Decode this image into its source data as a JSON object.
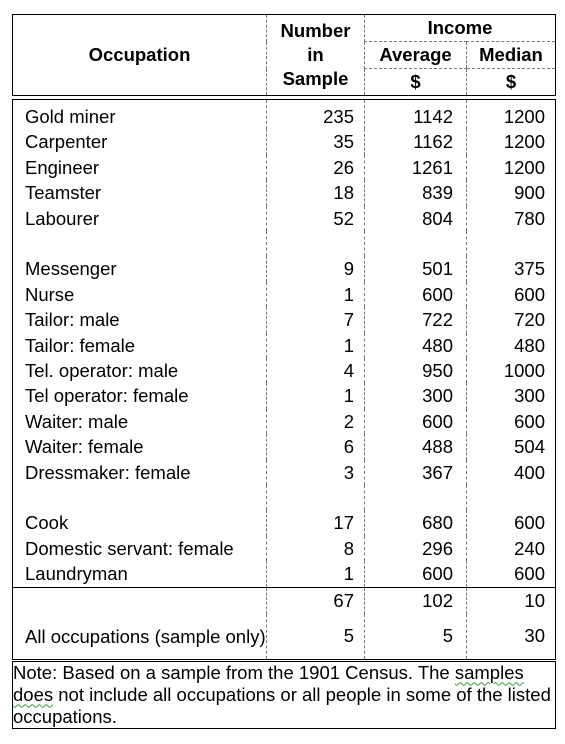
{
  "header": {
    "occupation": "Occupation",
    "number_line1": "Number",
    "number_line2": "in",
    "number_line3": "Sample",
    "income": "Income",
    "average": "Average",
    "median": "Median",
    "average_unit": "$",
    "median_unit": "$"
  },
  "groups": [
    [
      {
        "occupation": "Gold miner",
        "number": "235",
        "average": "1142",
        "median": "1200"
      },
      {
        "occupation": "Carpenter",
        "number": "35",
        "average": "1162",
        "median": "1200"
      },
      {
        "occupation": "Engineer",
        "number": "26",
        "average": "1261",
        "median": "1200"
      },
      {
        "occupation": "Teamster",
        "number": "18",
        "average": "839",
        "median": "900"
      },
      {
        "occupation": "Labourer",
        "number": "52",
        "average": "804",
        "median": "780"
      }
    ],
    [
      {
        "occupation": "Messenger",
        "number": "9",
        "average": "501",
        "median": "375"
      },
      {
        "occupation": "Nurse",
        "number": "1",
        "average": "600",
        "median": "600"
      },
      {
        "occupation": "Tailor: male",
        "number": "7",
        "average": "722",
        "median": "720"
      },
      {
        "occupation": "Tailor: female",
        "number": "1",
        "average": "480",
        "median": "480"
      },
      {
        "occupation": "Tel. operator: male",
        "number": "4",
        "average": "950",
        "median": "1000"
      },
      {
        "occupation": "Tel operator: female",
        "number": "1",
        "average": "300",
        "median": "300"
      },
      {
        "occupation": "Waiter: male",
        "number": "2",
        "average": "600",
        "median": "600"
      },
      {
        "occupation": "Waiter: female",
        "number": "6",
        "average": "488",
        "median": "504"
      },
      {
        "occupation": "Dressmaker: female",
        "number": "3",
        "average": "367",
        "median": "400"
      }
    ],
    [
      {
        "occupation": "Cook",
        "number": "17",
        "average": "680",
        "median": "600"
      },
      {
        "occupation": "Domestic servant: female",
        "number": "8",
        "average": "296",
        "median": "240"
      },
      {
        "occupation": "Laundryman",
        "number": "1",
        "average": "600",
        "median": "600"
      }
    ]
  ],
  "totals": {
    "row1": {
      "number": "67",
      "average": "102",
      "median": "10"
    },
    "all_label": "All occupations (sample only)",
    "row2": {
      "number": "5",
      "average": "5",
      "median": "30"
    }
  },
  "note": {
    "before": "Note:  Based on a sample from the 1901 Census.  The ",
    "squiggle": "samples does",
    "after": " not include all occupations or all people in some of the listed occupations."
  }
}
